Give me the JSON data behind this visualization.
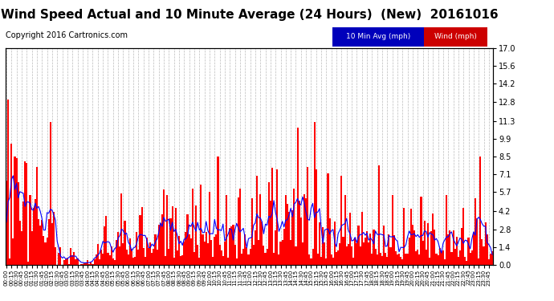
{
  "title": "Wind Speed Actual and 10 Minute Average (24 Hours)  (New)  20161016",
  "copyright": "Copyright 2016 Cartronics.com",
  "legend_labels": [
    "10 Min Avg (mph)",
    "Wind (mph)"
  ],
  "legend_bg_colors": [
    "#0000bb",
    "#cc0000"
  ],
  "yticks": [
    0.0,
    1.4,
    2.8,
    4.2,
    5.7,
    7.1,
    8.5,
    9.9,
    11.3,
    12.8,
    14.2,
    15.6,
    17.0
  ],
  "ylim": [
    0.0,
    17.0
  ],
  "background_color": "#ffffff",
  "plot_bg_color": "#ffffff",
  "grid_color": "#bbbbbb",
  "bar_color": "#ff0000",
  "line_color": "#0000ff",
  "title_fontsize": 11,
  "copyright_fontsize": 7,
  "n_points": 288
}
